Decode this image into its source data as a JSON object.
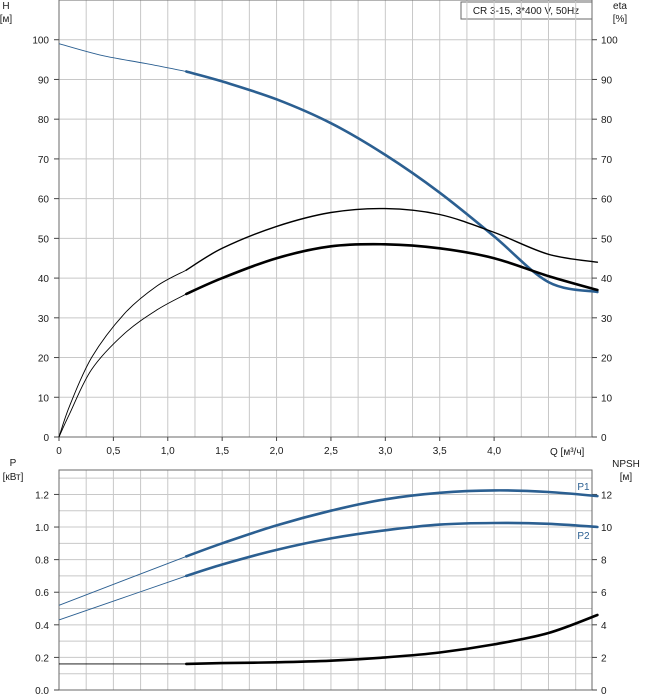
{
  "model_label": "CR 3-15, 3*400 V, 50Hz",
  "colors": {
    "blue": "#2b5f91",
    "black": "#000000",
    "grid": "#c8c8c8"
  },
  "chart_data": [
    {
      "type": "line",
      "name": "upper",
      "y_left_label": [
        "H",
        "[м]"
      ],
      "y_right_label": [
        "eta",
        "[%]"
      ],
      "xlabel": "Q [м³/ч]",
      "xlim": [
        0,
        4.9
      ],
      "ylim": [
        0,
        110
      ],
      "x_ticks": [
        "0",
        "0,5",
        "1,0",
        "1,5",
        "2,0",
        "2,5",
        "3,0",
        "3,5",
        "4,0"
      ],
      "x_tick_values": [
        0,
        0.5,
        1.0,
        1.5,
        2.0,
        2.5,
        3.0,
        3.5,
        4.0
      ],
      "y_ticks": [
        "0",
        "10",
        "20",
        "30",
        "40",
        "50",
        "60",
        "70",
        "80",
        "90",
        "100"
      ],
      "y_tick_values": [
        0,
        10,
        20,
        30,
        40,
        50,
        60,
        70,
        80,
        90,
        100
      ],
      "grid": true,
      "series": [
        {
          "role": "H",
          "color": "blue",
          "thin_x": [
            0,
            0.4,
            0.8,
            1.17
          ],
          "thin_y": [
            99,
            96,
            94,
            92
          ],
          "x": [
            1.17,
            1.5,
            2.0,
            2.5,
            3.0,
            3.5,
            4.0,
            4.5,
            4.95
          ],
          "y": [
            92,
            89.5,
            85,
            79,
            71,
            61.5,
            50.5,
            39,
            36.5
          ]
        },
        {
          "role": "eta",
          "color": "black",
          "thin_x": [
            0,
            0.1,
            0.3,
            0.6,
            0.9,
            1.17
          ],
          "thin_y": [
            0,
            8,
            20,
            31,
            38,
            42
          ],
          "x": [
            1.17,
            1.5,
            2.0,
            2.5,
            3.0,
            3.5,
            4.0,
            4.5,
            4.95
          ],
          "y": [
            42,
            47.5,
            53,
            56.5,
            57.5,
            56,
            51.5,
            46,
            44
          ],
          "heavy": false
        },
        {
          "role": "eta",
          "color": "black",
          "thin_x": [
            0,
            0.1,
            0.3,
            0.6,
            0.9,
            1.17
          ],
          "thin_y": [
            0,
            6,
            17,
            26,
            32,
            36
          ],
          "x": [
            1.17,
            1.5,
            2.0,
            2.5,
            3.0,
            3.5,
            4.0,
            4.5,
            4.95
          ],
          "y": [
            36,
            40,
            45,
            48,
            48.5,
            47.5,
            45,
            40.5,
            37
          ],
          "heavy": true
        }
      ]
    },
    {
      "type": "line",
      "name": "lower",
      "y_left_label": [
        "P",
        "[кВт]"
      ],
      "y_right_label": [
        "NPSH",
        "[м]"
      ],
      "xlim": [
        0,
        4.9
      ],
      "ylim": [
        0,
        1.35
      ],
      "y_ticks": [
        "0.0",
        "0.2",
        "0.4",
        "0.6",
        "0.8",
        "1.0",
        "1.2"
      ],
      "y_tick_values": [
        0,
        0.2,
        0.4,
        0.6,
        0.8,
        1.0,
        1.2
      ],
      "y_right_ticks": [
        "0",
        "2",
        "4",
        "6",
        "8",
        "10",
        "12"
      ],
      "grid": true,
      "series": [
        {
          "name": "P1",
          "color": "blue",
          "thin_x": [
            0,
            1.17
          ],
          "thin_y": [
            0.52,
            0.82
          ],
          "x": [
            1.17,
            1.5,
            2.0,
            2.5,
            3.0,
            3.5,
            4.0,
            4.5,
            4.95
          ],
          "y": [
            0.82,
            0.9,
            1.01,
            1.1,
            1.17,
            1.21,
            1.225,
            1.215,
            1.19
          ]
        },
        {
          "name": "P2",
          "color": "blue",
          "thin_x": [
            0,
            1.17
          ],
          "thin_y": [
            0.43,
            0.7
          ],
          "x": [
            1.17,
            1.5,
            2.0,
            2.5,
            3.0,
            3.5,
            4.0,
            4.5,
            4.95
          ],
          "y": [
            0.7,
            0.77,
            0.86,
            0.93,
            0.98,
            1.015,
            1.025,
            1.02,
            1.0
          ]
        },
        {
          "role": "NPSH",
          "color": "black",
          "thin_x": [
            0,
            1.17
          ],
          "thin_y": [
            0.16,
            0.16
          ],
          "x": [
            1.17,
            1.5,
            2.0,
            2.5,
            3.0,
            3.5,
            4.0,
            4.5,
            4.95
          ],
          "y": [
            0.16,
            0.165,
            0.17,
            0.18,
            0.2,
            0.23,
            0.28,
            0.35,
            0.46
          ]
        }
      ]
    }
  ]
}
